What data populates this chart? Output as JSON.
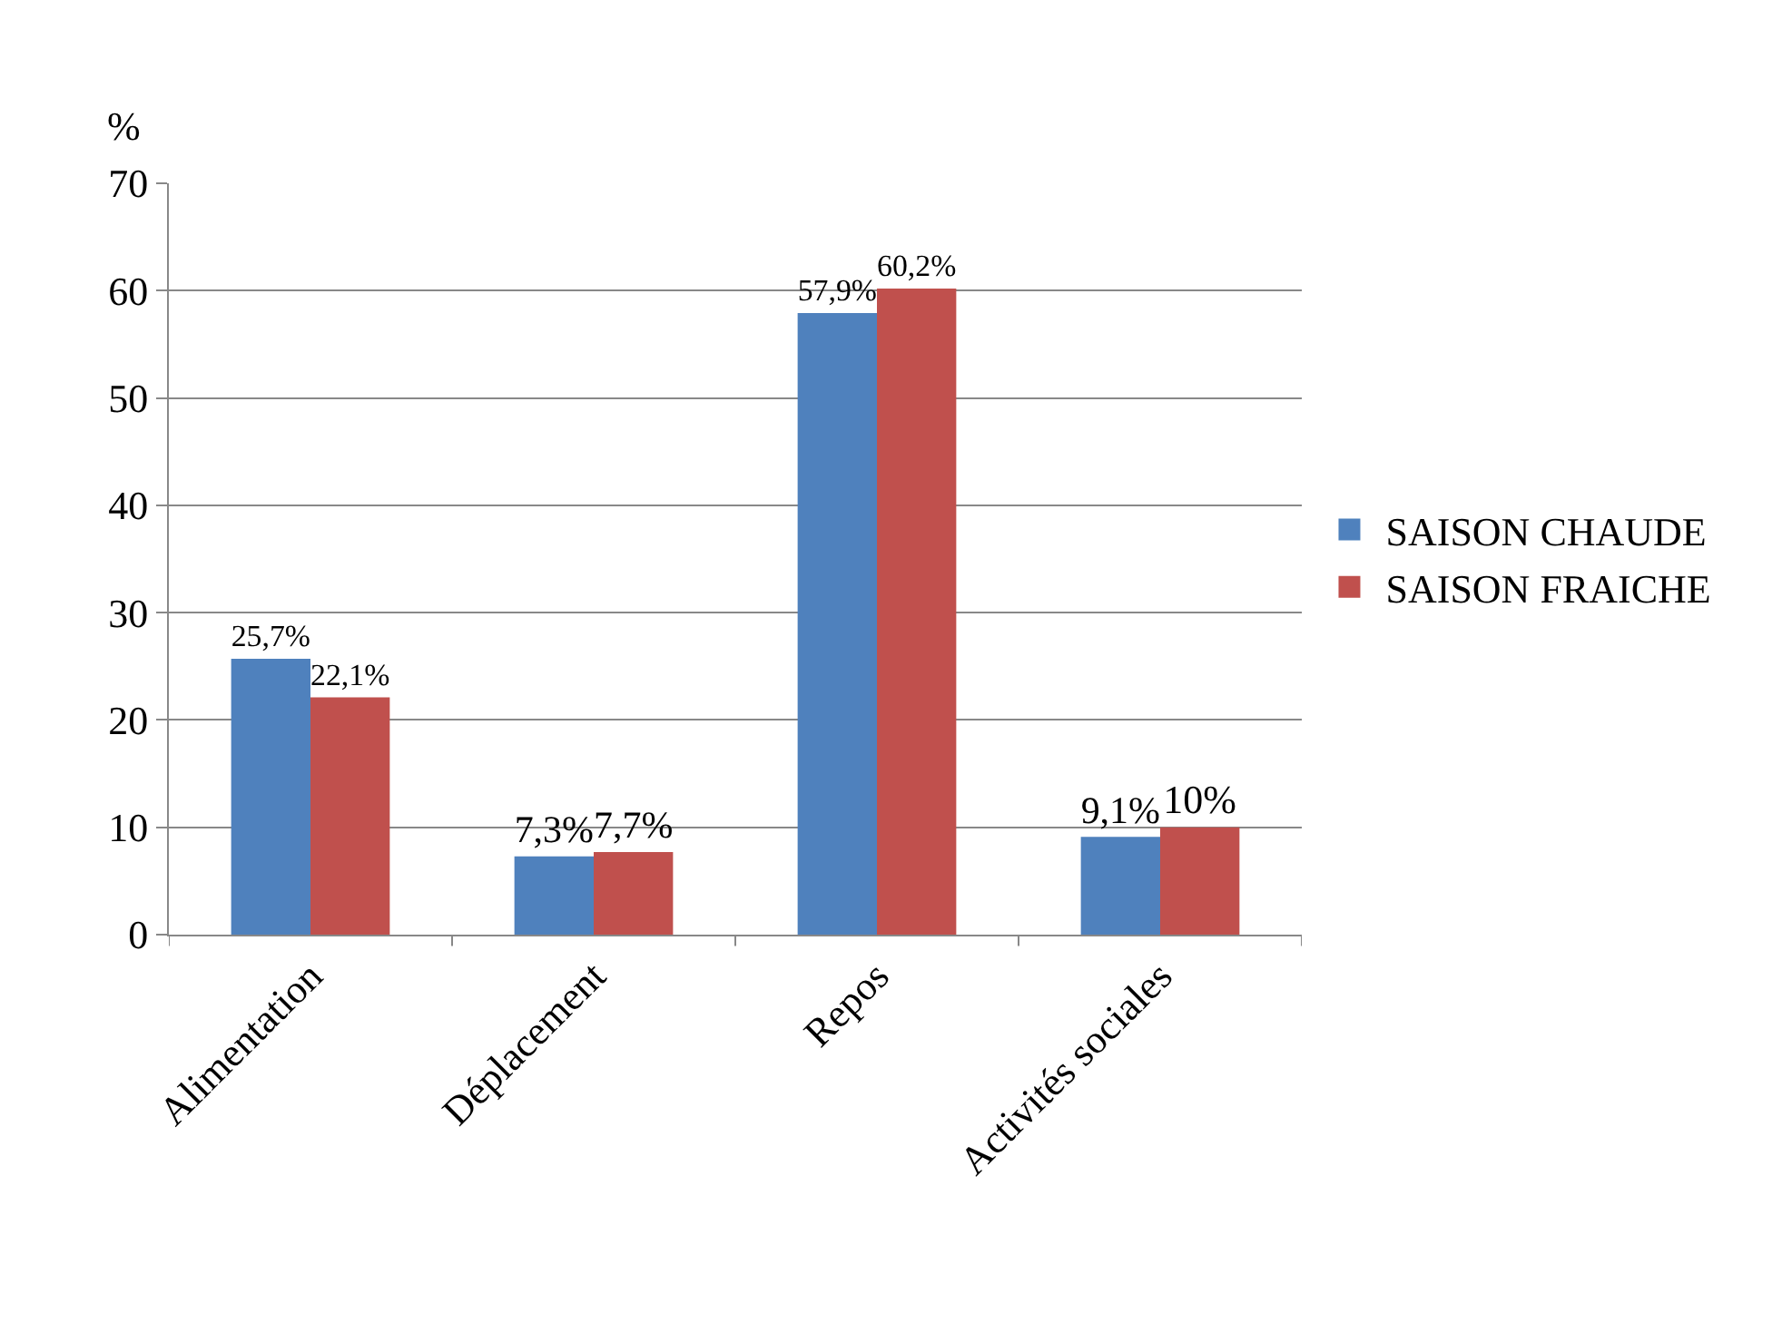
{
  "chart_data": {
    "type": "bar",
    "ylabel": "%",
    "categories": [
      "Alimentation",
      "Déplacement",
      "Repos",
      "Activités sociales"
    ],
    "series": [
      {
        "name": "SAISON CHAUDE",
        "color": "#4f81bd",
        "values": [
          25.7,
          7.3,
          57.9,
          9.1
        ],
        "value_labels": [
          "25,7%",
          "7,3%",
          "57,9%",
          "9,1%"
        ]
      },
      {
        "name": "SAISON FRAICHE",
        "color": "#c0504d",
        "values": [
          22.1,
          7.7,
          60.2,
          10
        ],
        "value_labels": [
          "22,1%",
          "7,7%",
          "60,2%",
          "10%"
        ]
      }
    ],
    "ylim": [
      0,
      70
    ],
    "yticks": [
      0,
      10,
      20,
      30,
      40,
      50,
      60,
      70
    ],
    "grid": "y",
    "legend": "right"
  }
}
